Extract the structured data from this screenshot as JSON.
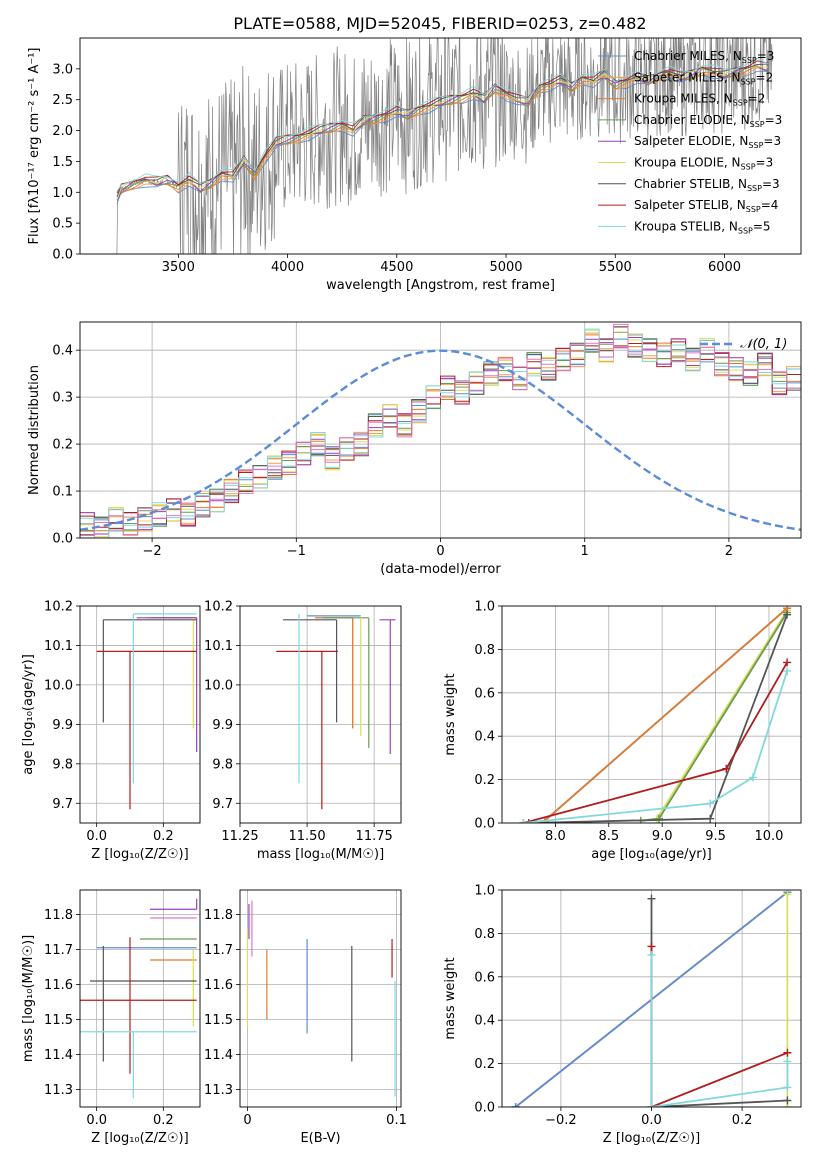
{
  "title": "PLATE=0588, MJD=52045, FIBERID=0253, z=0.482",
  "colors": {
    "chabrier_miles": "#5b8dd6",
    "salpeter_miles": "#f0a24a",
    "kroupa_miles": "#e07b2e",
    "chabrier_elodie": "#6a9a55",
    "salpeter_elodie": "#9b3fc2",
    "kroupa_elodie": "#d8e05a",
    "chabrier_stelib": "#555555",
    "salpeter_stelib": "#b01e1e",
    "kroupa_stelib": "#80d8de",
    "observed": "#808080",
    "normal": "#5b8dd6",
    "pink": "#e377c2"
  },
  "chart_data": [
    {
      "id": "spectrum",
      "type": "line",
      "title": "PLATE=0588, MJD=52045, FIBERID=0253, z=0.482",
      "xlabel": "wavelength [Angstrom, rest frame]",
      "ylabel": "Flux [fλ10⁻¹⁷ erg cm⁻² s⁻¹ A⁻¹]",
      "xlim": [
        3050,
        6350
      ],
      "ylim": [
        0,
        3.5
      ],
      "xticks": [
        "3500",
        "4000",
        "4500",
        "5000",
        "5500",
        "6000"
      ],
      "yticks": [
        "0.0",
        "0.5",
        "1.0",
        "1.5",
        "2.0",
        "2.5",
        "3.0"
      ],
      "legend_position": "top-right",
      "legend": [
        {
          "label": "Chabrier MILES, N",
          "sub": "SSP",
          "suffix": "=3",
          "color_key": "chabrier_miles"
        },
        {
          "label": "Salpeter MILES, N",
          "sub": "SSP",
          "suffix": "=2",
          "color_key": "salpeter_miles"
        },
        {
          "label": "Kroupa MILES, N",
          "sub": "SSP",
          "suffix": "=2",
          "color_key": "kroupa_miles"
        },
        {
          "label": "Chabrier ELODIE, N",
          "sub": "SSP",
          "suffix": "=3",
          "color_key": "chabrier_elodie"
        },
        {
          "label": "Salpeter ELODIE, N",
          "sub": "SSP",
          "suffix": "=3",
          "color_key": "salpeter_elodie"
        },
        {
          "label": "Kroupa ELODIE, N",
          "sub": "SSP",
          "suffix": "=3",
          "color_key": "kroupa_elodie"
        },
        {
          "label": "Chabrier STELIB, N",
          "sub": "SSP",
          "suffix": "=3",
          "color_key": "chabrier_stelib"
        },
        {
          "label": "Salpeter STELIB, N",
          "sub": "SSP",
          "suffix": "=4",
          "color_key": "salpeter_stelib"
        },
        {
          "label": "Kroupa STELIB, N",
          "sub": "SSP",
          "suffix": "=5",
          "color_key": "kroupa_stelib"
        }
      ],
      "model_x": [
        3220,
        3240,
        3300,
        3350,
        3400,
        3450,
        3500,
        3550,
        3600,
        3650,
        3700,
        3750,
        3800,
        3850,
        3900,
        3950,
        4000,
        4050,
        4100,
        4150,
        4200,
        4250,
        4300,
        4350,
        4400,
        4450,
        4500,
        4550,
        4600,
        4650,
        4700,
        4750,
        4800,
        4850,
        4900,
        4950,
        5000,
        5050,
        5100,
        5150,
        5200,
        5250,
        5300,
        5350,
        5400,
        5450,
        5500,
        5550,
        5600,
        5650,
        5700,
        5750,
        5800,
        5850,
        5900,
        5950,
        6000,
        6050,
        6100,
        6150,
        6200
      ],
      "model_y": [
        0.9,
        1.05,
        1.15,
        1.2,
        1.15,
        1.2,
        1.1,
        1.2,
        1.05,
        1.15,
        1.3,
        1.25,
        1.5,
        1.3,
        1.6,
        1.8,
        1.85,
        1.9,
        1.95,
        2.0,
        2.05,
        2.1,
        2.0,
        2.15,
        2.2,
        2.25,
        2.3,
        2.25,
        2.35,
        2.4,
        2.45,
        2.5,
        2.55,
        2.6,
        2.5,
        2.7,
        2.6,
        2.5,
        2.45,
        2.7,
        2.75,
        2.8,
        2.7,
        2.85,
        2.8,
        2.9,
        2.75,
        2.8,
        2.85,
        2.8,
        2.9,
        2.95,
        2.85,
        2.9,
        3.0,
        2.95,
        2.9,
        2.95,
        3.0,
        3.05,
        3.0
      ]
    },
    {
      "id": "residuals",
      "type": "line",
      "xlabel": "(data-model)/error",
      "ylabel": "Normed distribution",
      "xlim": [
        -2.5,
        2.5
      ],
      "ylim": [
        0,
        0.46
      ],
      "xticks": [
        "−2",
        "−1",
        "0",
        "1",
        "2"
      ],
      "yticks": [
        "0.0",
        "0.1",
        "0.2",
        "0.3",
        "0.4"
      ],
      "legend_position": "top-right",
      "legend": [
        {
          "label": "𝒩(0, 1)",
          "color_key": "normal"
        }
      ],
      "bin_width": 0.1,
      "bin_start": -2.5,
      "hist_values": [
        0.03,
        0.02,
        0.04,
        0.03,
        0.04,
        0.05,
        0.06,
        0.05,
        0.07,
        0.08,
        0.1,
        0.12,
        0.13,
        0.15,
        0.16,
        0.18,
        0.2,
        0.17,
        0.19,
        0.2,
        0.24,
        0.26,
        0.24,
        0.27,
        0.3,
        0.32,
        0.31,
        0.33,
        0.35,
        0.36,
        0.34,
        0.37,
        0.36,
        0.38,
        0.39,
        0.42,
        0.4,
        0.43,
        0.41,
        0.4,
        0.39,
        0.4,
        0.38,
        0.4,
        0.37,
        0.36,
        0.35,
        0.37,
        0.33,
        0.34,
        0.32,
        0.3,
        0.28,
        0.27,
        0.26,
        0.24,
        0.22,
        0.2,
        0.19,
        0.17,
        0.16,
        0.15,
        0.13,
        0.12,
        0.1,
        0.11,
        0.09,
        0.08,
        0.09,
        0.07,
        0.08,
        0.06,
        0.07,
        0.05,
        0.06,
        0.04,
        0.05,
        0.04,
        0.04,
        0.03
      ]
    },
    {
      "id": "age_vs_Z",
      "type": "scatter",
      "xlabel": "Z [log₁₀(Z/Z☉)]",
      "ylabel": "age  [log₁₀(age/yr)]",
      "xlim": [
        -0.05,
        0.31
      ],
      "ylim": [
        9.65,
        10.2
      ],
      "xticks": [
        "0.0",
        "0.2"
      ],
      "yticks": [
        "9.7",
        "9.8",
        "9.9",
        "10.0",
        "10.1",
        "10.2"
      ],
      "series": [
        {
          "color_key": "chabrier_miles",
          "x": 0.3,
          "y": 10.175,
          "xerr": [
            0.0,
            0.0
          ],
          "yerr": [
            0.0,
            0.0
          ]
        },
        {
          "color_key": "salpeter_miles",
          "x": 0.3,
          "y": 10.17,
          "xerr": [
            0.15,
            0.0
          ],
          "yerr": [
            0.0,
            0.0
          ]
        },
        {
          "color_key": "kroupa_miles",
          "x": 0.3,
          "y": 10.17,
          "xerr": [
            0.12,
            0.0
          ],
          "yerr": [
            0.0,
            0.0
          ]
        },
        {
          "color_key": "chabrier_elodie",
          "x": 0.3,
          "y": 10.17,
          "xerr": [
            0.14,
            0.0
          ],
          "yerr": [
            0.0,
            0.0
          ]
        },
        {
          "color_key": "salpeter_elodie",
          "x": 0.3,
          "y": 10.17,
          "xerr": [
            0.18,
            0.0
          ],
          "yerr": [
            0.34,
            0.0
          ]
        },
        {
          "color_key": "kroupa_elodie",
          "x": 0.29,
          "y": 10.17,
          "xerr": [
            0.0,
            0.0
          ],
          "yerr": [
            0.28,
            0.0
          ]
        },
        {
          "color_key": "chabrier_stelib",
          "x": 0.02,
          "y": 10.165,
          "xerr": [
            0.0,
            0.28
          ],
          "yerr": [
            0.26,
            0.0
          ]
        },
        {
          "color_key": "salpeter_stelib",
          "x": 0.1,
          "y": 10.085,
          "xerr": [
            0.1,
            0.2
          ],
          "yerr": [
            0.4,
            0.0
          ]
        },
        {
          "color_key": "kroupa_stelib",
          "x": 0.11,
          "y": 10.18,
          "xerr": [
            0.0,
            0.19
          ],
          "yerr": [
            0.43,
            0.0
          ]
        }
      ]
    },
    {
      "id": "age_vs_mass",
      "type": "scatter",
      "xlabel": "mass [log₁₀(M/M☉)]",
      "xlim": [
        11.25,
        11.85
      ],
      "ylim": [
        9.65,
        10.2
      ],
      "xticks": [
        "11.25",
        "11.50",
        "11.75"
      ],
      "yticks": [
        "9.7",
        "9.8",
        "9.9",
        "10.0",
        "10.1",
        "10.2"
      ],
      "series": [
        {
          "color_key": "chabrier_miles",
          "x": 11.7,
          "y": 10.175,
          "xerr": [
            0.2,
            0.0
          ],
          "yerr": [
            0.0,
            0.0
          ]
        },
        {
          "color_key": "salpeter_miles",
          "x": 11.67,
          "y": 10.17,
          "xerr": [
            0.14,
            0.0
          ],
          "yerr": [
            0.28,
            0.0
          ]
        },
        {
          "color_key": "kroupa_miles",
          "x": 11.67,
          "y": 10.17,
          "xerr": [
            0.14,
            0.0
          ],
          "yerr": [
            0.28,
            0.0
          ]
        },
        {
          "color_key": "chabrier_elodie",
          "x": 11.73,
          "y": 10.17,
          "xerr": [
            0.17,
            0.0
          ],
          "yerr": [
            0.33,
            0.0
          ]
        },
        {
          "color_key": "salpeter_elodie",
          "x": 11.81,
          "y": 10.165,
          "xerr": [
            0.04,
            0.02
          ],
          "yerr": [
            0.34,
            0.0
          ]
        },
        {
          "color_key": "kroupa_elodie",
          "x": 11.7,
          "y": 10.17,
          "xerr": [
            0.0,
            0.0
          ],
          "yerr": [
            0.3,
            0.0
          ]
        },
        {
          "color_key": "chabrier_stelib",
          "x": 11.61,
          "y": 10.165,
          "xerr": [
            0.2,
            0.0
          ],
          "yerr": [
            0.26,
            0.0
          ]
        },
        {
          "color_key": "salpeter_stelib",
          "x": 11.555,
          "y": 10.085,
          "xerr": [
            0.17,
            0.06
          ],
          "yerr": [
            0.4,
            0.0
          ]
        },
        {
          "color_key": "kroupa_stelib",
          "x": 11.47,
          "y": 10.18,
          "xerr": [
            0.0,
            0.0
          ],
          "yerr": [
            0.43,
            0.0
          ]
        },
        {
          "color_key": "pink",
          "x": 11.79,
          "y": 10.165,
          "xerr": [
            0.0,
            0.0
          ],
          "yerr": [
            0.0,
            0.0
          ]
        }
      ]
    },
    {
      "id": "massweight_vs_age",
      "type": "line",
      "xlabel": "age  [log₁₀(age/yr)]",
      "ylabel": "mass weight",
      "xlim": [
        7.5,
        10.3
      ],
      "ylim": [
        0,
        1
      ],
      "xticks": [
        "8.0",
        "8.5",
        "9.0",
        "9.5",
        "10.0"
      ],
      "yticks": [
        "0.0",
        "0.2",
        "0.4",
        "0.6",
        "0.8",
        "1.0"
      ],
      "series": [
        {
          "color_key": "kroupa_elodie",
          "x": [
            8.8,
            8.95,
            10.17
          ],
          "y": [
            0.01,
            0.02,
            0.98
          ]
        },
        {
          "color_key": "chabrier_elodie",
          "x": [
            8.8,
            8.97,
            10.17
          ],
          "y": [
            0.01,
            0.02,
            0.97
          ]
        },
        {
          "color_key": "chabrier_miles",
          "x": [
            7.9,
            10.17
          ],
          "y": [
            0.01,
            0.99
          ]
        },
        {
          "color_key": "kroupa_miles",
          "x": [
            7.9,
            10.17
          ],
          "y": [
            0.01,
            0.99
          ]
        },
        {
          "color_key": "chabrier_stelib",
          "x": [
            7.75,
            9.45,
            10.17
          ],
          "y": [
            0.0,
            0.02,
            0.96
          ]
        },
        {
          "color_key": "salpeter_stelib",
          "x": [
            7.7,
            9.6,
            10.17
          ],
          "y": [
            0.0,
            0.25,
            0.74
          ]
        },
        {
          "color_key": "kroupa_stelib",
          "x": [
            7.7,
            9.45,
            9.85,
            10.17
          ],
          "y": [
            0.0,
            0.09,
            0.21,
            0.7
          ]
        }
      ]
    },
    {
      "id": "mass_vs_Z",
      "type": "scatter",
      "xlabel": "Z [log₁₀(Z/Z☉)]",
      "ylabel": "mass [log₁₀(M/M☉)]",
      "xlim": [
        -0.05,
        0.31
      ],
      "ylim": [
        11.25,
        11.87
      ],
      "xticks": [
        "0.0",
        "0.2"
      ],
      "yticks": [
        "11.3",
        "11.4",
        "11.5",
        "11.6",
        "11.7",
        "11.8"
      ],
      "series": [
        {
          "color_key": "chabrier_miles",
          "x": 0.3,
          "y": 11.705,
          "xerr": [
            0.3,
            0.0
          ],
          "yerr": [
            0.0,
            0.0
          ]
        },
        {
          "color_key": "kroupa_miles",
          "x": 0.3,
          "y": 11.67,
          "xerr": [
            0.14,
            0.0
          ],
          "yerr": [
            0.0,
            0.0
          ]
        },
        {
          "color_key": "chabrier_elodie",
          "x": 0.3,
          "y": 11.73,
          "xerr": [
            0.17,
            0.0
          ],
          "yerr": [
            0.0,
            0.0
          ]
        },
        {
          "color_key": "salpeter_elodie",
          "x": 0.3,
          "y": 11.815,
          "xerr": [
            0.14,
            0.0
          ],
          "yerr": [
            0.0,
            0.03
          ]
        },
        {
          "color_key": "pink",
          "x": 0.3,
          "y": 11.79,
          "xerr": [
            0.14,
            0.0
          ],
          "yerr": [
            0.0,
            0.0
          ]
        },
        {
          "color_key": "kroupa_elodie",
          "x": 0.29,
          "y": 11.7,
          "xerr": [
            0.0,
            0.0
          ],
          "yerr": [
            0.22,
            0.0
          ]
        },
        {
          "color_key": "chabrier_stelib",
          "x": 0.02,
          "y": 11.61,
          "xerr": [
            0.04,
            0.28
          ],
          "yerr": [
            0.23,
            0.1
          ]
        },
        {
          "color_key": "salpeter_stelib",
          "x": 0.1,
          "y": 11.555,
          "xerr": [
            0.15,
            0.2
          ],
          "yerr": [
            0.21,
            0.18
          ]
        },
        {
          "color_key": "kroupa_stelib",
          "x": 0.11,
          "y": 11.465,
          "xerr": [
            0.16,
            0.19
          ],
          "yerr": [
            0.19,
            0.0
          ]
        }
      ]
    },
    {
      "id": "mass_vs_ebv",
      "type": "scatter",
      "xlabel": "E(B-V)",
      "xlim": [
        -0.005,
        0.103
      ],
      "ylim": [
        11.25,
        11.87
      ],
      "xticks": [
        "0",
        "0.1"
      ],
      "yticks": [
        "11.3",
        "11.4",
        "11.5",
        "11.6",
        "11.7",
        "11.8"
      ],
      "series": [
        {
          "color_key": "salpeter_elodie",
          "x": 0.001,
          "y": 11.78,
          "xerr": [
            0.0,
            0.0
          ],
          "yerr": [
            0.05,
            0.05
          ]
        },
        {
          "color_key": "pink",
          "x": 0.003,
          "y": 11.76,
          "xerr": [
            0.0,
            0.0
          ],
          "yerr": [
            0.08,
            0.08
          ]
        },
        {
          "color_key": "kroupa_elodie",
          "x": 0.0,
          "y": 11.62,
          "xerr": [
            0.0,
            0.0
          ],
          "yerr": [
            0.14,
            0.14
          ]
        },
        {
          "color_key": "kroupa_miles",
          "x": 0.013,
          "y": 11.6,
          "xerr": [
            0.0,
            0.0
          ],
          "yerr": [
            0.1,
            0.1
          ]
        },
        {
          "color_key": "chabrier_miles",
          "x": 0.04,
          "y": 11.6,
          "xerr": [
            0.0,
            0.0
          ],
          "yerr": [
            0.14,
            0.13
          ]
        },
        {
          "color_key": "chabrier_stelib",
          "x": 0.07,
          "y": 11.55,
          "xerr": [
            0.0,
            0.0
          ],
          "yerr": [
            0.17,
            0.16
          ]
        },
        {
          "color_key": "salpeter_stelib",
          "x": 0.097,
          "y": 11.68,
          "xerr": [
            0.0,
            0.0
          ],
          "yerr": [
            0.06,
            0.05
          ]
        },
        {
          "color_key": "kroupa_stelib",
          "x": 0.099,
          "y": 11.45,
          "xerr": [
            0.0,
            0.0
          ],
          "yerr": [
            0.17,
            0.16
          ]
        }
      ]
    },
    {
      "id": "massweight_vs_Z",
      "type": "line",
      "xlabel": "Z [log₁₀(Z/Z☉)]",
      "ylabel": "mass weight",
      "xlim": [
        -0.33,
        0.33
      ],
      "ylim": [
        0,
        1
      ],
      "xticks": [
        "−0.2",
        "0.0",
        "0.2"
      ],
      "yticks": [
        "0.0",
        "0.2",
        "0.4",
        "0.6",
        "0.8",
        "1.0"
      ],
      "series": [
        {
          "color_key": "kroupa_miles",
          "x": [
            -0.3,
            0.3
          ],
          "y": [
            0.0,
            0.99
          ]
        },
        {
          "color_key": "chabrier_miles",
          "x": [
            -0.3,
            0.3
          ],
          "y": [
            0.0,
            0.99
          ]
        },
        {
          "color_key": "kroupa_elodie",
          "x": [
            0.3,
            0.3
          ],
          "y": [
            0.0,
            0.98
          ]
        },
        {
          "color_key": "chabrier_stelib",
          "x": [
            0.0,
            0.0,
            0.3
          ],
          "y": [
            0.96,
            0.0,
            0.03
          ]
        },
        {
          "color_key": "salpeter_stelib",
          "x": [
            0.0,
            0.0,
            0.3
          ],
          "y": [
            0.74,
            0.0,
            0.25
          ]
        },
        {
          "color_key": "kroupa_stelib",
          "x": [
            0.0,
            0.0,
            0.3,
            0.3
          ],
          "y": [
            0.7,
            0.0,
            0.09,
            0.21
          ]
        }
      ]
    }
  ]
}
